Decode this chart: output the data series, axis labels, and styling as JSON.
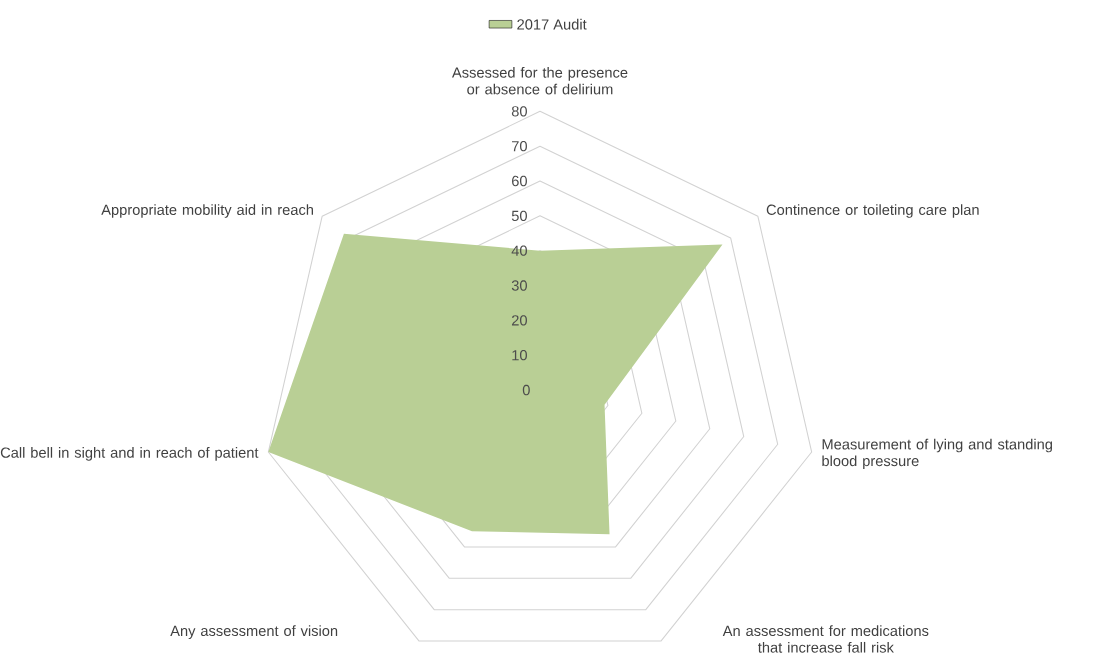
{
  "chart_data": {
    "type": "radar",
    "categories": [
      "Assessed for the presence or absence of delirium",
      "Continence or toileting care plan",
      "Measurement of lying and standing blood pressure",
      "An assessment for medications that increase fall risk",
      "Any assessment of vision",
      "Call bell in sight and in reach of patient",
      "Appropriate mobility aid in reach"
    ],
    "series": [
      {
        "name": "2017 Audit",
        "color": "#b9cf95",
        "values": [
          40,
          67,
          19,
          46,
          45,
          80,
          72
        ]
      }
    ],
    "ylim": [
      0,
      80
    ],
    "yticks": [
      0,
      10,
      20,
      30,
      40,
      50,
      60,
      70,
      80
    ],
    "grid": true,
    "legend": "top",
    "marker": "none"
  }
}
